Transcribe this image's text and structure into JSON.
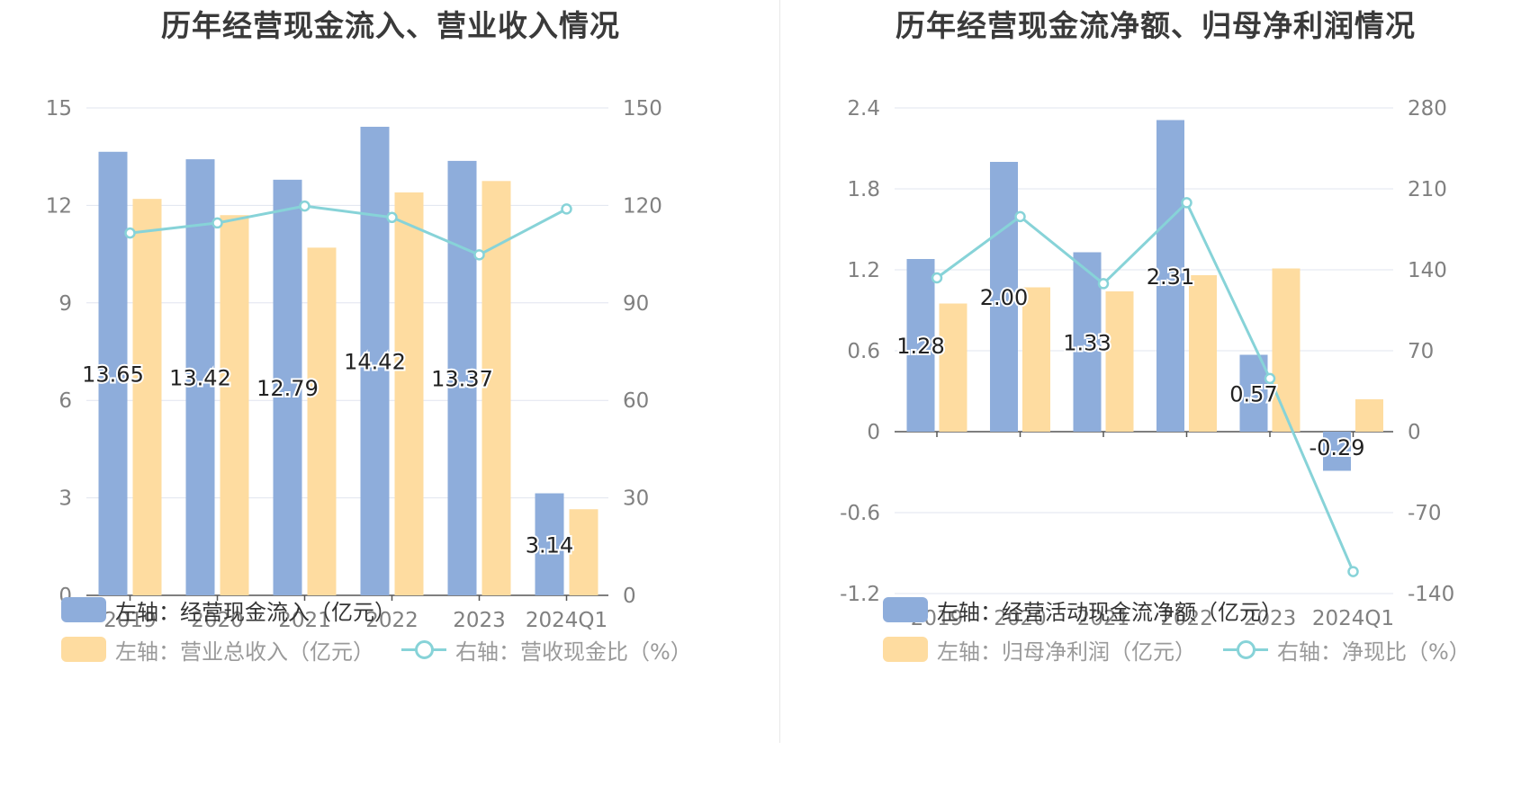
{
  "colors": {
    "blue": "#8eaddb",
    "orange": "#fedca0",
    "line": "#87d3d8",
    "grid": "#e1e4ef",
    "axis": "#555555"
  },
  "chart_data": [
    {
      "type": "bar+line",
      "title": "历年经营现金流入、营业收入情况",
      "categories": [
        "2019",
        "2020",
        "2021",
        "2022",
        "2023",
        "2024Q1"
      ],
      "left_axis": {
        "ticks": [
          "0",
          "3",
          "6",
          "9",
          "12",
          "15"
        ],
        "min": 0,
        "max": 15
      },
      "right_axis": {
        "ticks": [
          "0",
          "30",
          "60",
          "90",
          "120",
          "150"
        ],
        "min": 0,
        "max": 150
      },
      "series": [
        {
          "name": "经营现金流入",
          "axis": "left",
          "type": "bar",
          "color_key": "blue",
          "values": [
            13.65,
            13.42,
            12.79,
            14.42,
            13.37,
            3.14
          ],
          "labels": [
            "13.65",
            "13.42",
            "12.79",
            "14.42",
            "13.37",
            "3.14"
          ]
        },
        {
          "name": "营业总收入",
          "axis": "left",
          "type": "bar",
          "color_key": "orange",
          "values": [
            12.2,
            11.7,
            10.7,
            12.4,
            12.75,
            2.65
          ]
        },
        {
          "name": "营收现金比",
          "axis": "right",
          "type": "line",
          "color_key": "line",
          "values": [
            111.5,
            114.6,
            119.8,
            116.3,
            104.8,
            118.9
          ]
        }
      ],
      "legend": [
        {
          "label": "左轴：经营现金流入（亿元）",
          "kind": "bar",
          "color_key": "blue"
        },
        {
          "label": "左轴：营业总收入（亿元）",
          "kind": "bar",
          "color_key": "orange"
        },
        {
          "label": "右轴：营收现金比（%）",
          "kind": "line",
          "color_key": "line"
        }
      ]
    },
    {
      "type": "bar+line",
      "title": "历年经营现金流净额、归母净利润情况",
      "categories": [
        "2019",
        "2020",
        "2021",
        "2022",
        "2023",
        "2024Q1"
      ],
      "left_axis": {
        "ticks": [
          "-1.2",
          "-0.6",
          "0",
          "0.6",
          "1.2",
          "1.8",
          "2.4"
        ],
        "min": -1.2,
        "max": 2.4
      },
      "right_axis": {
        "ticks": [
          "-140",
          "-70",
          "0",
          "70",
          "140",
          "210",
          "280"
        ],
        "min": -140,
        "max": 280
      },
      "series": [
        {
          "name": "经营活动现金流净额",
          "axis": "left",
          "type": "bar",
          "color_key": "blue",
          "values": [
            1.28,
            2.0,
            1.33,
            2.31,
            0.57,
            -0.29
          ],
          "labels": [
            "1.28",
            "2.00",
            "1.33",
            "2.31",
            "0.57",
            "-0.29"
          ]
        },
        {
          "name": "归母净利润",
          "axis": "left",
          "type": "bar",
          "color_key": "orange",
          "values": [
            0.95,
            1.07,
            1.04,
            1.16,
            1.21,
            0.24
          ]
        },
        {
          "name": "净现比",
          "axis": "right",
          "type": "line",
          "color_key": "line",
          "values": [
            133,
            186,
            128,
            198,
            46,
            -121
          ]
        }
      ],
      "legend": [
        {
          "label": "左轴：经营活动现金流净额（亿元）",
          "kind": "bar",
          "color_key": "blue"
        },
        {
          "label": "左轴：归母净利润（亿元）",
          "kind": "bar",
          "color_key": "orange"
        },
        {
          "label": "右轴：净现比（%）",
          "kind": "line",
          "color_key": "line"
        }
      ]
    }
  ]
}
